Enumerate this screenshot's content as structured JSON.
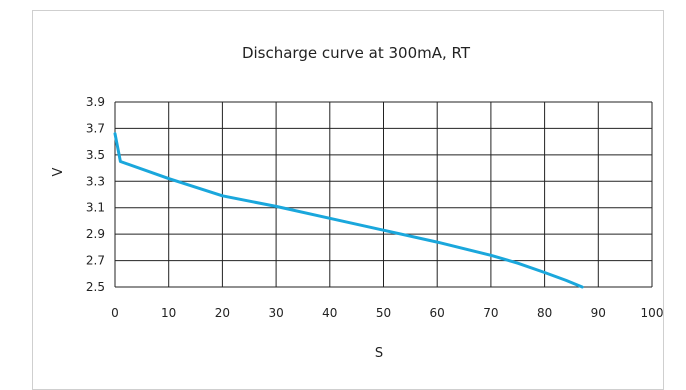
{
  "chart_data": {
    "type": "line",
    "title": "Discharge curve at 300mA, RT",
    "xlabel": "S",
    "ylabel": "V",
    "xlim": [
      0,
      100
    ],
    "ylim": [
      2.5,
      3.9
    ],
    "xticks": [
      "0",
      "10",
      "20",
      "30",
      "40",
      "50",
      "60",
      "70",
      "80",
      "90",
      "100"
    ],
    "yticks": [
      "3.9",
      "3.7",
      "3.5",
      "3.3",
      "3.1",
      "2.9",
      "2.7",
      "2.5"
    ],
    "grid": true,
    "series": [
      {
        "color": "#1aa7dc",
        "x": [
          0,
          1,
          10,
          20,
          30,
          40,
          50,
          60,
          70,
          75,
          80,
          84,
          87
        ],
        "y": [
          3.66,
          3.45,
          3.32,
          3.19,
          3.11,
          3.02,
          2.93,
          2.84,
          2.74,
          2.68,
          2.61,
          2.55,
          2.5
        ]
      }
    ]
  }
}
